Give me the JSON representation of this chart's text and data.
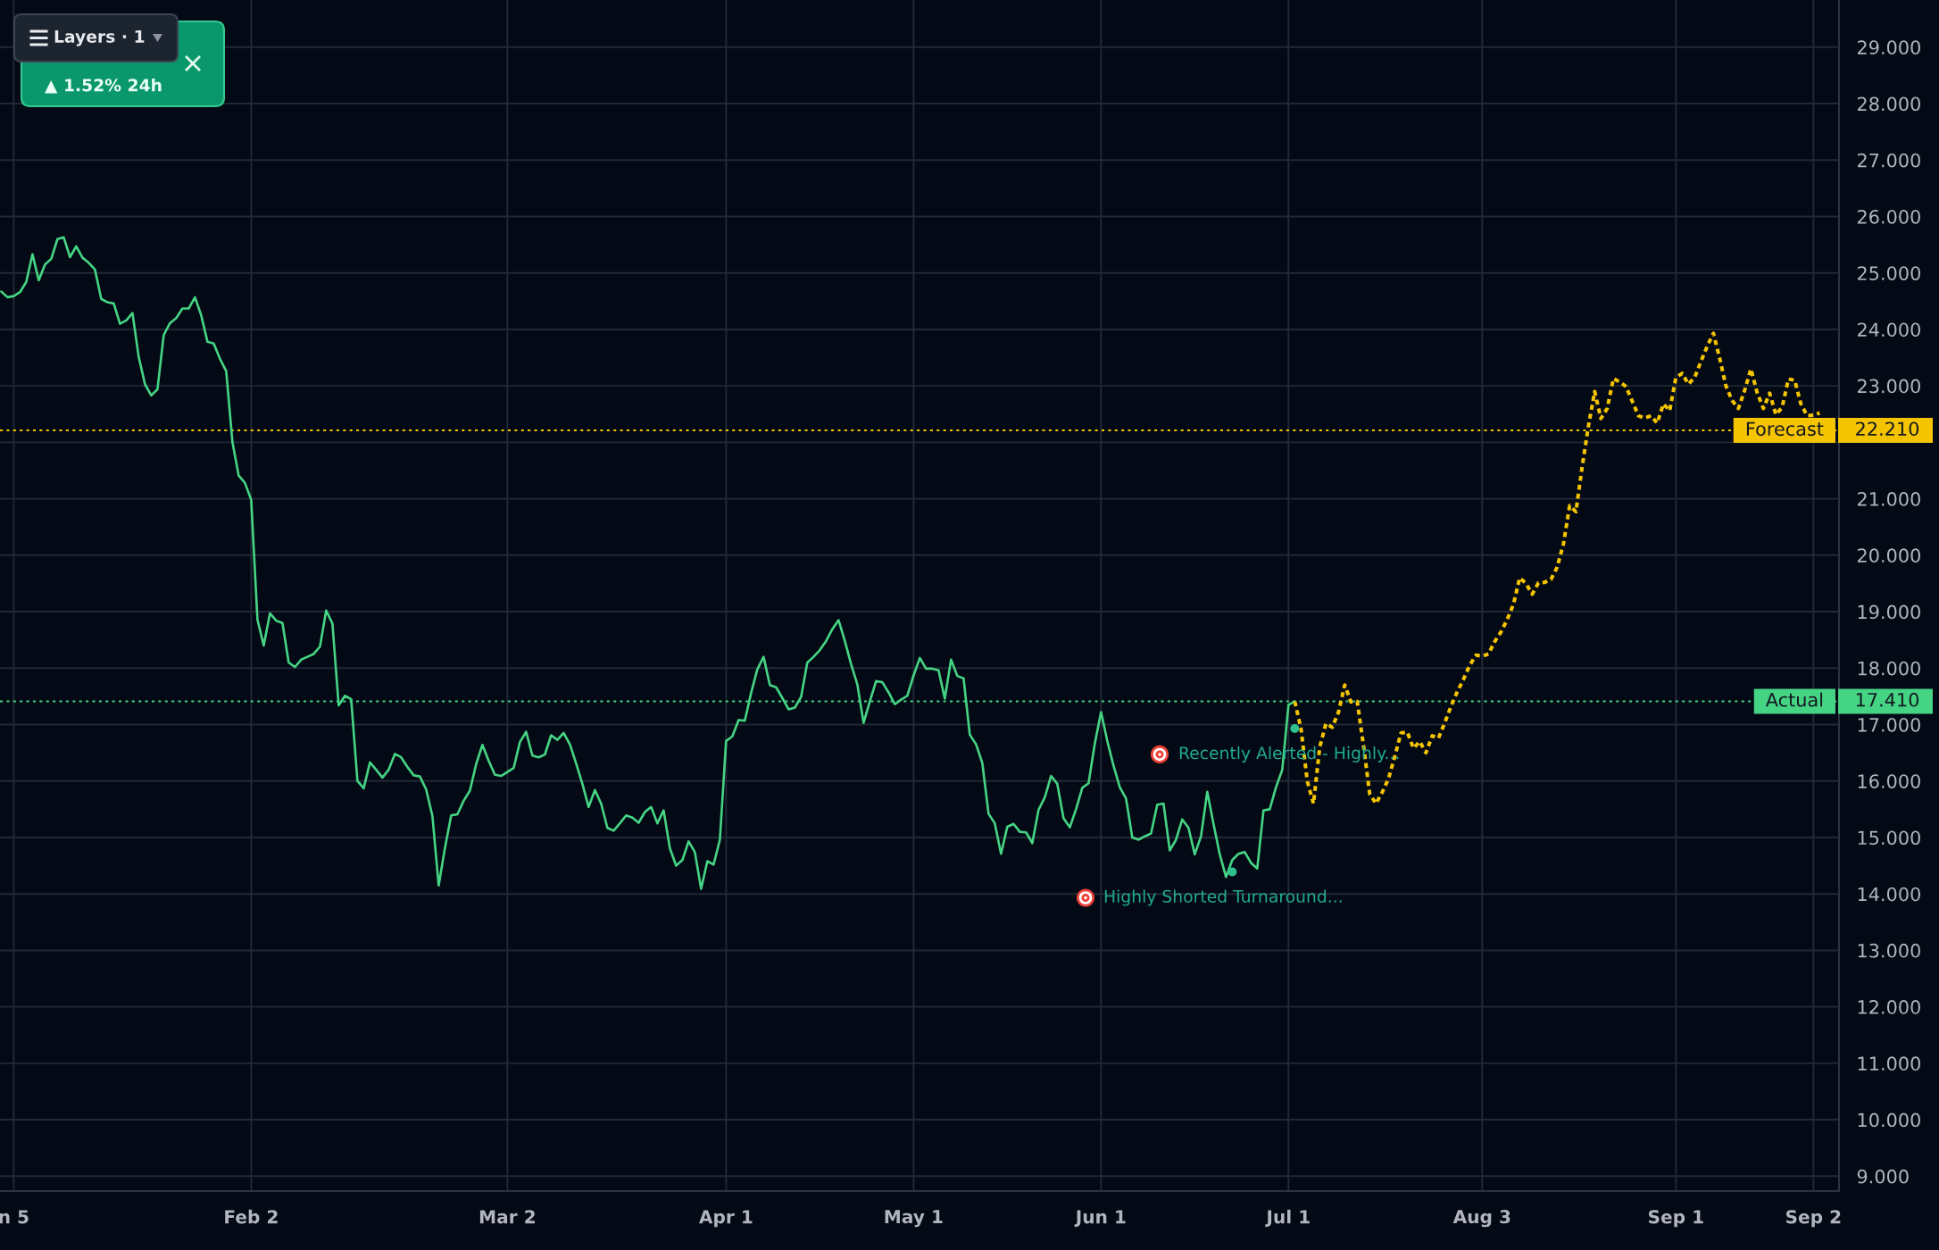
{
  "chart_data": {
    "type": "line",
    "categories": [
      null,
      null,
      "n 5",
      null,
      null,
      null,
      null,
      null,
      null,
      null,
      null,
      null,
      null,
      null,
      null,
      null,
      null,
      null,
      null,
      null,
      null,
      null,
      null,
      null,
      null,
      null,
      null,
      null,
      null,
      null,
      null,
      null,
      null,
      null,
      null,
      null,
      null,
      null,
      null,
      null,
      "Feb 2",
      null,
      null,
      null,
      null,
      null,
      null,
      null,
      null,
      null,
      null,
      null,
      null,
      null,
      null,
      null,
      null,
      null,
      null,
      null,
      null,
      null,
      null,
      null,
      null,
      null,
      null,
      null,
      null,
      null,
      null,
      null,
      null,
      null,
      null,
      null,
      null,
      null,
      null,
      null,
      null,
      "Mar 2",
      null,
      null,
      null,
      null,
      null,
      null,
      null,
      null,
      null,
      null,
      null,
      null,
      null,
      null,
      null,
      null,
      null,
      null,
      null,
      null,
      null,
      null,
      null,
      null,
      null,
      null,
      null,
      null,
      null,
      null,
      null,
      null,
      null,
      null,
      "Apr 1",
      null,
      null,
      null,
      null,
      null,
      null,
      null,
      null,
      null,
      null,
      null,
      null,
      null,
      null,
      null,
      null,
      null,
      null,
      null,
      null,
      null,
      null,
      null,
      null,
      null,
      null,
      null,
      null,
      null,
      "May 1",
      null,
      null,
      null,
      null,
      null,
      null,
      null,
      null,
      null,
      null,
      null,
      null,
      null,
      null,
      null,
      null,
      null,
      null,
      null,
      null,
      null,
      null,
      null,
      null,
      null,
      null,
      null,
      null,
      null,
      "Jun 1",
      null,
      null,
      null,
      null,
      null,
      null,
      null,
      null,
      null,
      null,
      null,
      null,
      null,
      null,
      null,
      null,
      null,
      null,
      null,
      null,
      null,
      null,
      null,
      null,
      null,
      null,
      null,
      null,
      null,
      "Jul 1",
      null,
      null,
      null,
      null,
      null,
      null,
      null,
      null,
      null,
      null,
      null,
      null,
      null,
      null,
      null,
      null,
      null,
      null,
      null,
      null,
      null,
      null,
      null,
      null,
      null,
      null,
      null,
      null,
      null,
      null,
      "Aug 3",
      null,
      null,
      null,
      null,
      null,
      null,
      null,
      null,
      null,
      null,
      null,
      null,
      null,
      null,
      null,
      null,
      null,
      null,
      null,
      null,
      null,
      null,
      null,
      null,
      null,
      null,
      null,
      null,
      null,
      null,
      "Sep 1",
      null,
      null,
      null,
      null,
      null,
      null,
      null,
      null,
      null,
      null,
      null,
      null,
      null,
      null,
      null,
      null,
      null,
      null,
      null,
      null,
      null,
      "Sep 2",
      null,
      null,
      null
    ],
    "series": [
      {
        "color": "#45d483",
        "line_style": "solid",
        "values": [
          24.67,
          24.57,
          24.59,
          24.66,
          24.84,
          25.33,
          24.87,
          25.15,
          25.25,
          25.6,
          25.63,
          25.28,
          25.47,
          25.27,
          25.18,
          25.06,
          24.54,
          24.48,
          24.46,
          24.1,
          24.16,
          24.29,
          23.51,
          23.03,
          22.83,
          22.94,
          23.9,
          24.11,
          24.2,
          24.37,
          24.37,
          24.57,
          24.25,
          23.78,
          23.75,
          23.48,
          23.26,
          22.0,
          21.41,
          21.28,
          20.98,
          18.86,
          18.4,
          18.97,
          18.84,
          18.8,
          18.1,
          18.02,
          18.15,
          18.2,
          18.25,
          18.38,
          19.02,
          18.79,
          17.34,
          17.51,
          17.45,
          16.0,
          15.87,
          16.33,
          16.2,
          16.06,
          16.2,
          16.48,
          16.42,
          16.25,
          16.1,
          16.08,
          15.85,
          15.38,
          14.15,
          14.81,
          15.39,
          15.41,
          15.65,
          15.83,
          16.3,
          16.64,
          16.36,
          16.11,
          16.09,
          16.16,
          16.23,
          16.69,
          16.87,
          16.45,
          16.42,
          16.47,
          16.81,
          16.73,
          16.85,
          16.65,
          16.31,
          15.95,
          15.54,
          15.84,
          15.6,
          15.17,
          15.12,
          15.25,
          15.39,
          15.35,
          15.26,
          15.45,
          15.54,
          15.25,
          15.48,
          14.81,
          14.5,
          14.6,
          14.93,
          14.74,
          14.09,
          14.58,
          14.52,
          14.96,
          16.71,
          16.79,
          17.08,
          17.07,
          17.56,
          17.98,
          18.2,
          17.7,
          17.66,
          17.47,
          17.27,
          17.3,
          17.49,
          18.1,
          18.2,
          18.32,
          18.48,
          18.69,
          18.85,
          18.48,
          18.07,
          17.71,
          17.03,
          17.41,
          17.77,
          17.75,
          17.57,
          17.36,
          17.44,
          17.51,
          17.87,
          18.18,
          17.99,
          17.99,
          17.96,
          17.46,
          18.15,
          17.86,
          17.82,
          16.82,
          16.65,
          16.32,
          15.42,
          15.25,
          14.71,
          15.19,
          15.24,
          15.1,
          15.09,
          14.9,
          15.49,
          15.71,
          16.09,
          15.95,
          15.34,
          15.18,
          15.5,
          15.88,
          15.96,
          16.66,
          17.22,
          16.71,
          16.27,
          15.89,
          15.69,
          15.0,
          14.96,
          15.02,
          15.07,
          15.58,
          15.6,
          14.77,
          14.96,
          15.32,
          15.17,
          14.7,
          15.02,
          15.81,
          15.24,
          14.7,
          14.3,
          14.6,
          14.71,
          14.74,
          14.55,
          14.45,
          15.48,
          15.5,
          15.89,
          16.2,
          17.35,
          17.41,
          null,
          null,
          null,
          null,
          null,
          null,
          null,
          null,
          null,
          null,
          null,
          null,
          null,
          null,
          null,
          null,
          null,
          null,
          null,
          null,
          null,
          null,
          null,
          null,
          null,
          null,
          null,
          null,
          null,
          null,
          null,
          null,
          null,
          null,
          null,
          null,
          null,
          null,
          null,
          null,
          null,
          null,
          null,
          null,
          null,
          null,
          null,
          null,
          null,
          null,
          null,
          null,
          null,
          null,
          null,
          null,
          null,
          null,
          null,
          null,
          null,
          null,
          null,
          null,
          null,
          null,
          null,
          null,
          null,
          null,
          null,
          null,
          null,
          null,
          null,
          null,
          null,
          null,
          null,
          null,
          null,
          null,
          null,
          null,
          null,
          null
        ]
      },
      {
        "color": "#f5c400",
        "line_style": "dotted",
        "values": [
          null,
          null,
          null,
          null,
          null,
          null,
          null,
          null,
          null,
          null,
          null,
          null,
          null,
          null,
          null,
          null,
          null,
          null,
          null,
          null,
          null,
          null,
          null,
          null,
          null,
          null,
          null,
          null,
          null,
          null,
          null,
          null,
          null,
          null,
          null,
          null,
          null,
          null,
          null,
          null,
          null,
          null,
          null,
          null,
          null,
          null,
          null,
          null,
          null,
          null,
          null,
          null,
          null,
          null,
          null,
          null,
          null,
          null,
          null,
          null,
          null,
          null,
          null,
          null,
          null,
          null,
          null,
          null,
          null,
          null,
          null,
          null,
          null,
          null,
          null,
          null,
          null,
          null,
          null,
          null,
          null,
          null,
          null,
          null,
          null,
          null,
          null,
          null,
          null,
          null,
          null,
          null,
          null,
          null,
          null,
          null,
          null,
          null,
          null,
          null,
          null,
          null,
          null,
          null,
          null,
          null,
          null,
          null,
          null,
          null,
          null,
          null,
          null,
          null,
          null,
          null,
          null,
          null,
          null,
          null,
          null,
          null,
          null,
          null,
          null,
          null,
          null,
          null,
          null,
          null,
          null,
          null,
          null,
          null,
          null,
          null,
          null,
          null,
          null,
          null,
          null,
          null,
          null,
          null,
          null,
          null,
          null,
          null,
          null,
          null,
          null,
          null,
          null,
          null,
          null,
          null,
          null,
          null,
          null,
          null,
          null,
          null,
          null,
          null,
          null,
          null,
          null,
          null,
          null,
          null,
          null,
          null,
          null,
          null,
          null,
          null,
          null,
          null,
          null,
          null,
          null,
          null,
          null,
          null,
          null,
          null,
          null,
          null,
          null,
          null,
          null,
          null,
          null,
          null,
          null,
          null,
          null,
          null,
          null,
          null,
          null,
          null,
          null,
          null,
          null,
          null,
          null,
          17.41,
          16.93,
          16.0,
          15.6,
          16.6,
          17.02,
          16.95,
          17.22,
          17.7,
          17.4,
          17.41,
          16.63,
          15.77,
          15.6,
          15.8,
          16.04,
          16.43,
          16.85,
          16.87,
          16.58,
          16.7,
          16.5,
          16.8,
          16.76,
          17.03,
          17.32,
          17.58,
          17.8,
          18.05,
          18.23,
          18.21,
          18.25,
          18.47,
          18.64,
          18.86,
          19.13,
          19.6,
          19.5,
          19.31,
          19.51,
          19.52,
          19.57,
          19.79,
          20.2,
          20.88,
          20.77,
          21.57,
          22.29,
          22.9,
          22.42,
          22.6,
          23.13,
          23.07,
          22.99,
          22.73,
          22.47,
          22.43,
          22.47,
          22.34,
          22.68,
          22.56,
          23.15,
          23.22,
          23.03,
          23.15,
          23.43,
          23.7,
          23.93,
          23.49,
          23.0,
          22.74,
          22.6,
          22.92,
          23.3,
          22.88,
          22.6,
          22.87,
          22.49,
          22.62,
          23.12,
          23.1,
          22.68,
          22.47,
          22.48,
          22.52,
          null,
          null
        ]
      },
      {
        "type": "scatter",
        "color": "#2fc08f",
        "marker": "circle",
        "values": [
          null,
          null,
          null,
          null,
          null,
          null,
          null,
          null,
          null,
          null,
          null,
          null,
          null,
          null,
          null,
          null,
          null,
          null,
          null,
          null,
          null,
          null,
          null,
          null,
          null,
          null,
          null,
          null,
          null,
          null,
          null,
          null,
          null,
          null,
          null,
          null,
          null,
          null,
          null,
          null,
          null,
          null,
          null,
          null,
          null,
          null,
          null,
          null,
          null,
          null,
          null,
          null,
          null,
          null,
          null,
          null,
          null,
          null,
          null,
          null,
          null,
          null,
          null,
          null,
          null,
          null,
          null,
          null,
          null,
          null,
          null,
          null,
          null,
          null,
          null,
          null,
          null,
          null,
          null,
          null,
          null,
          null,
          null,
          null,
          null,
          null,
          null,
          null,
          null,
          null,
          null,
          null,
          null,
          null,
          null,
          null,
          null,
          null,
          null,
          null,
          null,
          null,
          null,
          null,
          null,
          null,
          null,
          null,
          null,
          null,
          null,
          null,
          null,
          null,
          null,
          null,
          null,
          null,
          null,
          null,
          null,
          null,
          null,
          null,
          null,
          null,
          null,
          null,
          null,
          null,
          null,
          null,
          null,
          null,
          null,
          null,
          null,
          null,
          null,
          null,
          null,
          null,
          null,
          null,
          null,
          null,
          null,
          null,
          null,
          null,
          null,
          null,
          null,
          null,
          null,
          null,
          null,
          null,
          null,
          null,
          null,
          null,
          null,
          null,
          null,
          null,
          null,
          null,
          null,
          null,
          null,
          null,
          null,
          null,
          null,
          null,
          null,
          null,
          null,
          null,
          null,
          null,
          null,
          null,
          null,
          null,
          null,
          null,
          null,
          null,
          null,
          null,
          null,
          null,
          null,
          null,
          null,
          14.39,
          null,
          null,
          null,
          null,
          null,
          null,
          null,
          null,
          null,
          16.93,
          null,
          null,
          null,
          null,
          null,
          null,
          null,
          null,
          null,
          null,
          null,
          null,
          null,
          null,
          null,
          null,
          null,
          null,
          null,
          null,
          null,
          null,
          null,
          null,
          null,
          null,
          null,
          null,
          null,
          null,
          null,
          null,
          null,
          null,
          null,
          null,
          null,
          null,
          null,
          null,
          null,
          null,
          null,
          null,
          null,
          null,
          null,
          null,
          null,
          null,
          null,
          null,
          null,
          null,
          null,
          null,
          null,
          null,
          null,
          null,
          null,
          null,
          null,
          null,
          null,
          null,
          null,
          null,
          null,
          null,
          null,
          null,
          null,
          null,
          null,
          null,
          null,
          null,
          null,
          null,
          null,
          null,
          null,
          null,
          null,
          null
        ]
      }
    ],
    "ylim": [
      8.736,
      29.835
    ],
    "yticks": [
      {
        "value": 9,
        "label": "9.000"
      },
      {
        "value": 10,
        "label": "10.000"
      },
      {
        "value": 11,
        "label": "11.000"
      },
      {
        "value": 12,
        "label": "12.000"
      },
      {
        "value": 13,
        "label": "13.000"
      },
      {
        "value": 14,
        "label": "14.000"
      },
      {
        "value": 15,
        "label": "15.000"
      },
      {
        "value": 16,
        "label": "16.000"
      },
      {
        "value": 17,
        "label": "17.000"
      },
      {
        "value": 18,
        "label": "18.000"
      },
      {
        "value": 19,
        "label": "19.000"
      },
      {
        "value": 20,
        "label": "20.000"
      },
      {
        "value": 21,
        "label": "21.000"
      },
      {
        "value": 22,
        "label": null
      },
      {
        "value": 23,
        "label": "23.000"
      },
      {
        "value": 24,
        "label": "24.000"
      },
      {
        "value": 25,
        "label": "25.000"
      },
      {
        "value": 26,
        "label": "26.000"
      },
      {
        "value": 27,
        "label": "27.000"
      },
      {
        "value": 28,
        "label": "28.000"
      },
      {
        "value": 29,
        "label": "29.000"
      }
    ],
    "grid": true,
    "ref_lines": [
      {
        "axis": "y",
        "value": 22.21,
        "label": "Forecast",
        "color": "#f5c400",
        "line_style": "dotted"
      },
      {
        "axis": "y",
        "value": 17.41,
        "label": "Actual",
        "color": "#45d483",
        "line_style": "dotted"
      }
    ],
    "annotations": [
      "Layers · 1",
      "▲ 1.52% 24h",
      {
        "text": "Recently Alerted - Highly...",
        "y": 16.93
      },
      {
        "text": "Highly Shorted Turnaround...",
        "y": 14.39
      },
      "22.210",
      "17.410"
    ]
  }
}
